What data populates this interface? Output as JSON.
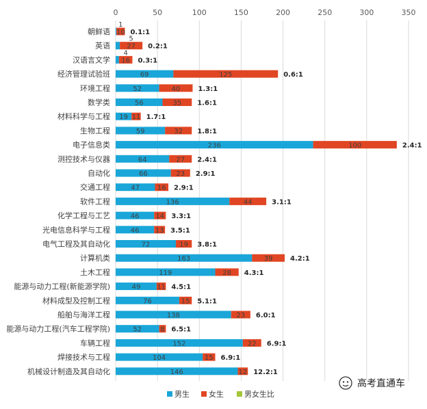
{
  "chart_data": {
    "type": "bar",
    "orientation": "horizontal",
    "stacked": true,
    "xlim": [
      0,
      350
    ],
    "xticks": [
      0,
      50,
      100,
      150,
      200,
      250,
      300,
      350
    ],
    "grid": true,
    "legend_position": "bottom",
    "categories": [
      "朝鲜语",
      "英语",
      "汉语言文学",
      "经济管理试验班",
      "环境工程",
      "数学类",
      "材料科学与工程",
      "生物工程",
      "电子信息类",
      "测控技术与仪器",
      "自动化",
      "交通工程",
      "软件工程",
      "化学工程与工艺",
      "光电信息科学与工程",
      "电气工程及其自动化",
      "计算机类",
      "土木工程",
      "能源与动力工程(新能源学院)",
      "材料成型及控制工程",
      "船舶与海洋工程",
      "能源与动力工程(汽车工程学院)",
      "车辆工程",
      "焊接技术与工程",
      "机械设计制造及其自动化"
    ],
    "series": [
      {
        "name": "男生",
        "color": "#1AA6D8",
        "values": [
          1,
          5,
          4,
          69,
          52,
          56,
          19,
          59,
          236,
          64,
          66,
          47,
          136,
          46,
          46,
          72,
          163,
          119,
          49,
          76,
          138,
          52,
          152,
          104,
          146
        ],
        "labels": [
          "1",
          "5",
          "4",
          "69",
          "52",
          "56",
          "19",
          "59",
          "236",
          "64",
          "66",
          "47",
          "136",
          "46",
          "46",
          "72",
          "163",
          "119",
          "49",
          "76",
          "138",
          "52",
          "152",
          "104",
          "146"
        ]
      },
      {
        "name": "女生",
        "color": "#E04623",
        "values": [
          10,
          27,
          16,
          125,
          40,
          35,
          11,
          32,
          100,
          27,
          23,
          16,
          44,
          14,
          13,
          19,
          39,
          28,
          11,
          15,
          23,
          8,
          22,
          15,
          12
        ],
        "labels": [
          "10",
          "27",
          "16",
          "125",
          "40",
          "35",
          "11",
          "32",
          "100",
          "27",
          "23",
          "16",
          "44",
          "14",
          "13",
          "19",
          "39",
          "28",
          "11",
          "15",
          "23",
          "8",
          "22",
          "15",
          "12"
        ]
      },
      {
        "name": "男女生比",
        "color": "#A4C639",
        "labels": [
          "0.1:1",
          "0.2:1",
          "0.3:1",
          "0.6:1",
          "1.3:1",
          "1.6:1",
          "1.7:1",
          "1.8:1",
          "2.4:1",
          "2.4:1",
          "2.9:1",
          "2.9:1",
          "3.1:1",
          "3.3:1",
          "3.5:1",
          "3.8:1",
          "4.2:1",
          "4.3:1",
          "4.5:1",
          "5.1:1",
          "6.0:1",
          "6.5:1",
          "6.9:1",
          "6.9:1",
          "12.2:1"
        ]
      }
    ]
  },
  "watermark": {
    "text": "高考直通车"
  }
}
